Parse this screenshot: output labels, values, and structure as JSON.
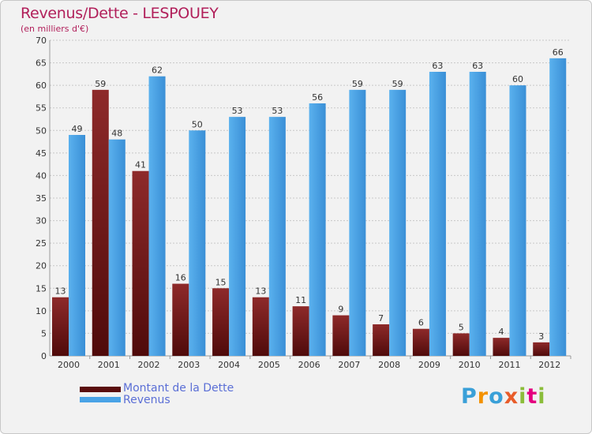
{
  "header": {
    "title": "Revenus/Dette - LESPOUEY",
    "subtitle": "(en milliers d'€)"
  },
  "legend": {
    "dette_label": "Montant de la Dette",
    "revenus_label": "Revenus"
  },
  "logo": {
    "text": "Proxiti",
    "letters": [
      "P",
      "r",
      "o",
      "x",
      "i",
      "t",
      "i"
    ],
    "colors": [
      "#3aa0d8",
      "#f39200",
      "#3aa0d8",
      "#e85c2a",
      "#8bbd3a",
      "#e4007f",
      "#8bbd3a"
    ]
  },
  "colors": {
    "dette": "#7a1a1a",
    "dette_dark": "#4f0a0a",
    "revenus": "#4aa3e6",
    "revenus_dark": "#2a78c2",
    "grid": "#c8c8c8",
    "axis_text": "#333333",
    "accent": "#b11f5a"
  },
  "chart_data": {
    "type": "bar",
    "title": "Revenus/Dette - LESPOUEY",
    "subtitle": "(en milliers d'€)",
    "xlabel": "",
    "ylabel": "",
    "ylim": [
      0,
      70
    ],
    "yticks": [
      0,
      5,
      10,
      15,
      20,
      25,
      30,
      35,
      40,
      45,
      50,
      55,
      60,
      65,
      70
    ],
    "grid": true,
    "legend_position": "bottom-left",
    "categories": [
      "2000",
      "2001",
      "2002",
      "2003",
      "2004",
      "2005",
      "2006",
      "2007",
      "2008",
      "2009",
      "2010",
      "2011",
      "2012"
    ],
    "series": [
      {
        "name": "Montant de la Dette",
        "values": [
          13,
          59,
          41,
          16,
          15,
          13,
          11,
          9,
          7,
          6,
          5,
          4,
          3
        ]
      },
      {
        "name": "Revenus",
        "values": [
          49,
          48,
          62,
          50,
          53,
          53,
          56,
          59,
          59,
          63,
          63,
          60,
          66
        ]
      }
    ]
  }
}
